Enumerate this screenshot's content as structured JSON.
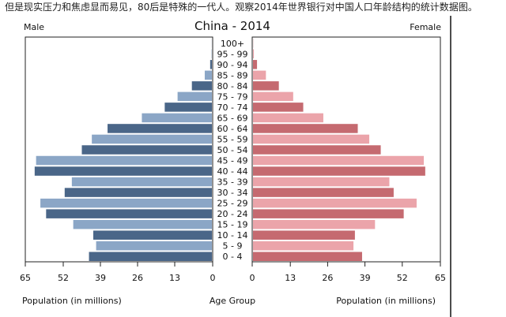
{
  "caption": "但是现实压力和焦虑显而易见，80后是特殊的一代人。观察2014年世界银行对中国人口年龄结构的统计数据图。",
  "chart_data": {
    "type": "bar",
    "title": "China - 2014",
    "left_label": "Male",
    "right_label": "Female",
    "center_label": "Age Group",
    "xlabel_left": "Population (in millions)",
    "xlabel_right": "Population (in millions)",
    "xlim": [
      0,
      65
    ],
    "x_ticks": [
      "65",
      "52",
      "39",
      "26",
      "13",
      "0",
      "0",
      "13",
      "26",
      "39",
      "52",
      "65"
    ],
    "categories": [
      "100+",
      "95 - 99",
      "90 - 94",
      "85 - 89",
      "80 - 84",
      "75 - 79",
      "70 - 74",
      "65 - 69",
      "60 - 64",
      "55 - 59",
      "50 - 54",
      "45 - 49",
      "40 - 44",
      "35 - 39",
      "30 - 34",
      "25 - 29",
      "20 - 24",
      "15 - 19",
      "10 - 14",
      "5 - 9",
      "0 - 4"
    ],
    "series": [
      {
        "name": "Male",
        "values": [
          0.02,
          0.1,
          0.6,
          2.5,
          7.0,
          12.0,
          16.5,
          24.5,
          36.5,
          42.0,
          45.5,
          61.5,
          62.0,
          49.0,
          51.5,
          60.0,
          58.0,
          48.5,
          41.5,
          40.5,
          43.0
        ]
      },
      {
        "name": "Female",
        "values": [
          0.05,
          0.3,
          1.4,
          4.5,
          9.0,
          14.0,
          17.5,
          24.5,
          36.5,
          40.5,
          44.5,
          59.5,
          60.0,
          47.5,
          49.0,
          57.0,
          52.5,
          42.5,
          35.5,
          35.0,
          38.0
        ]
      }
    ],
    "colors": {
      "male_dark": "#4a6688",
      "male_light": "#8ba6c6",
      "female_dark": "#c56a70",
      "female_light": "#eba4aa"
    }
  }
}
